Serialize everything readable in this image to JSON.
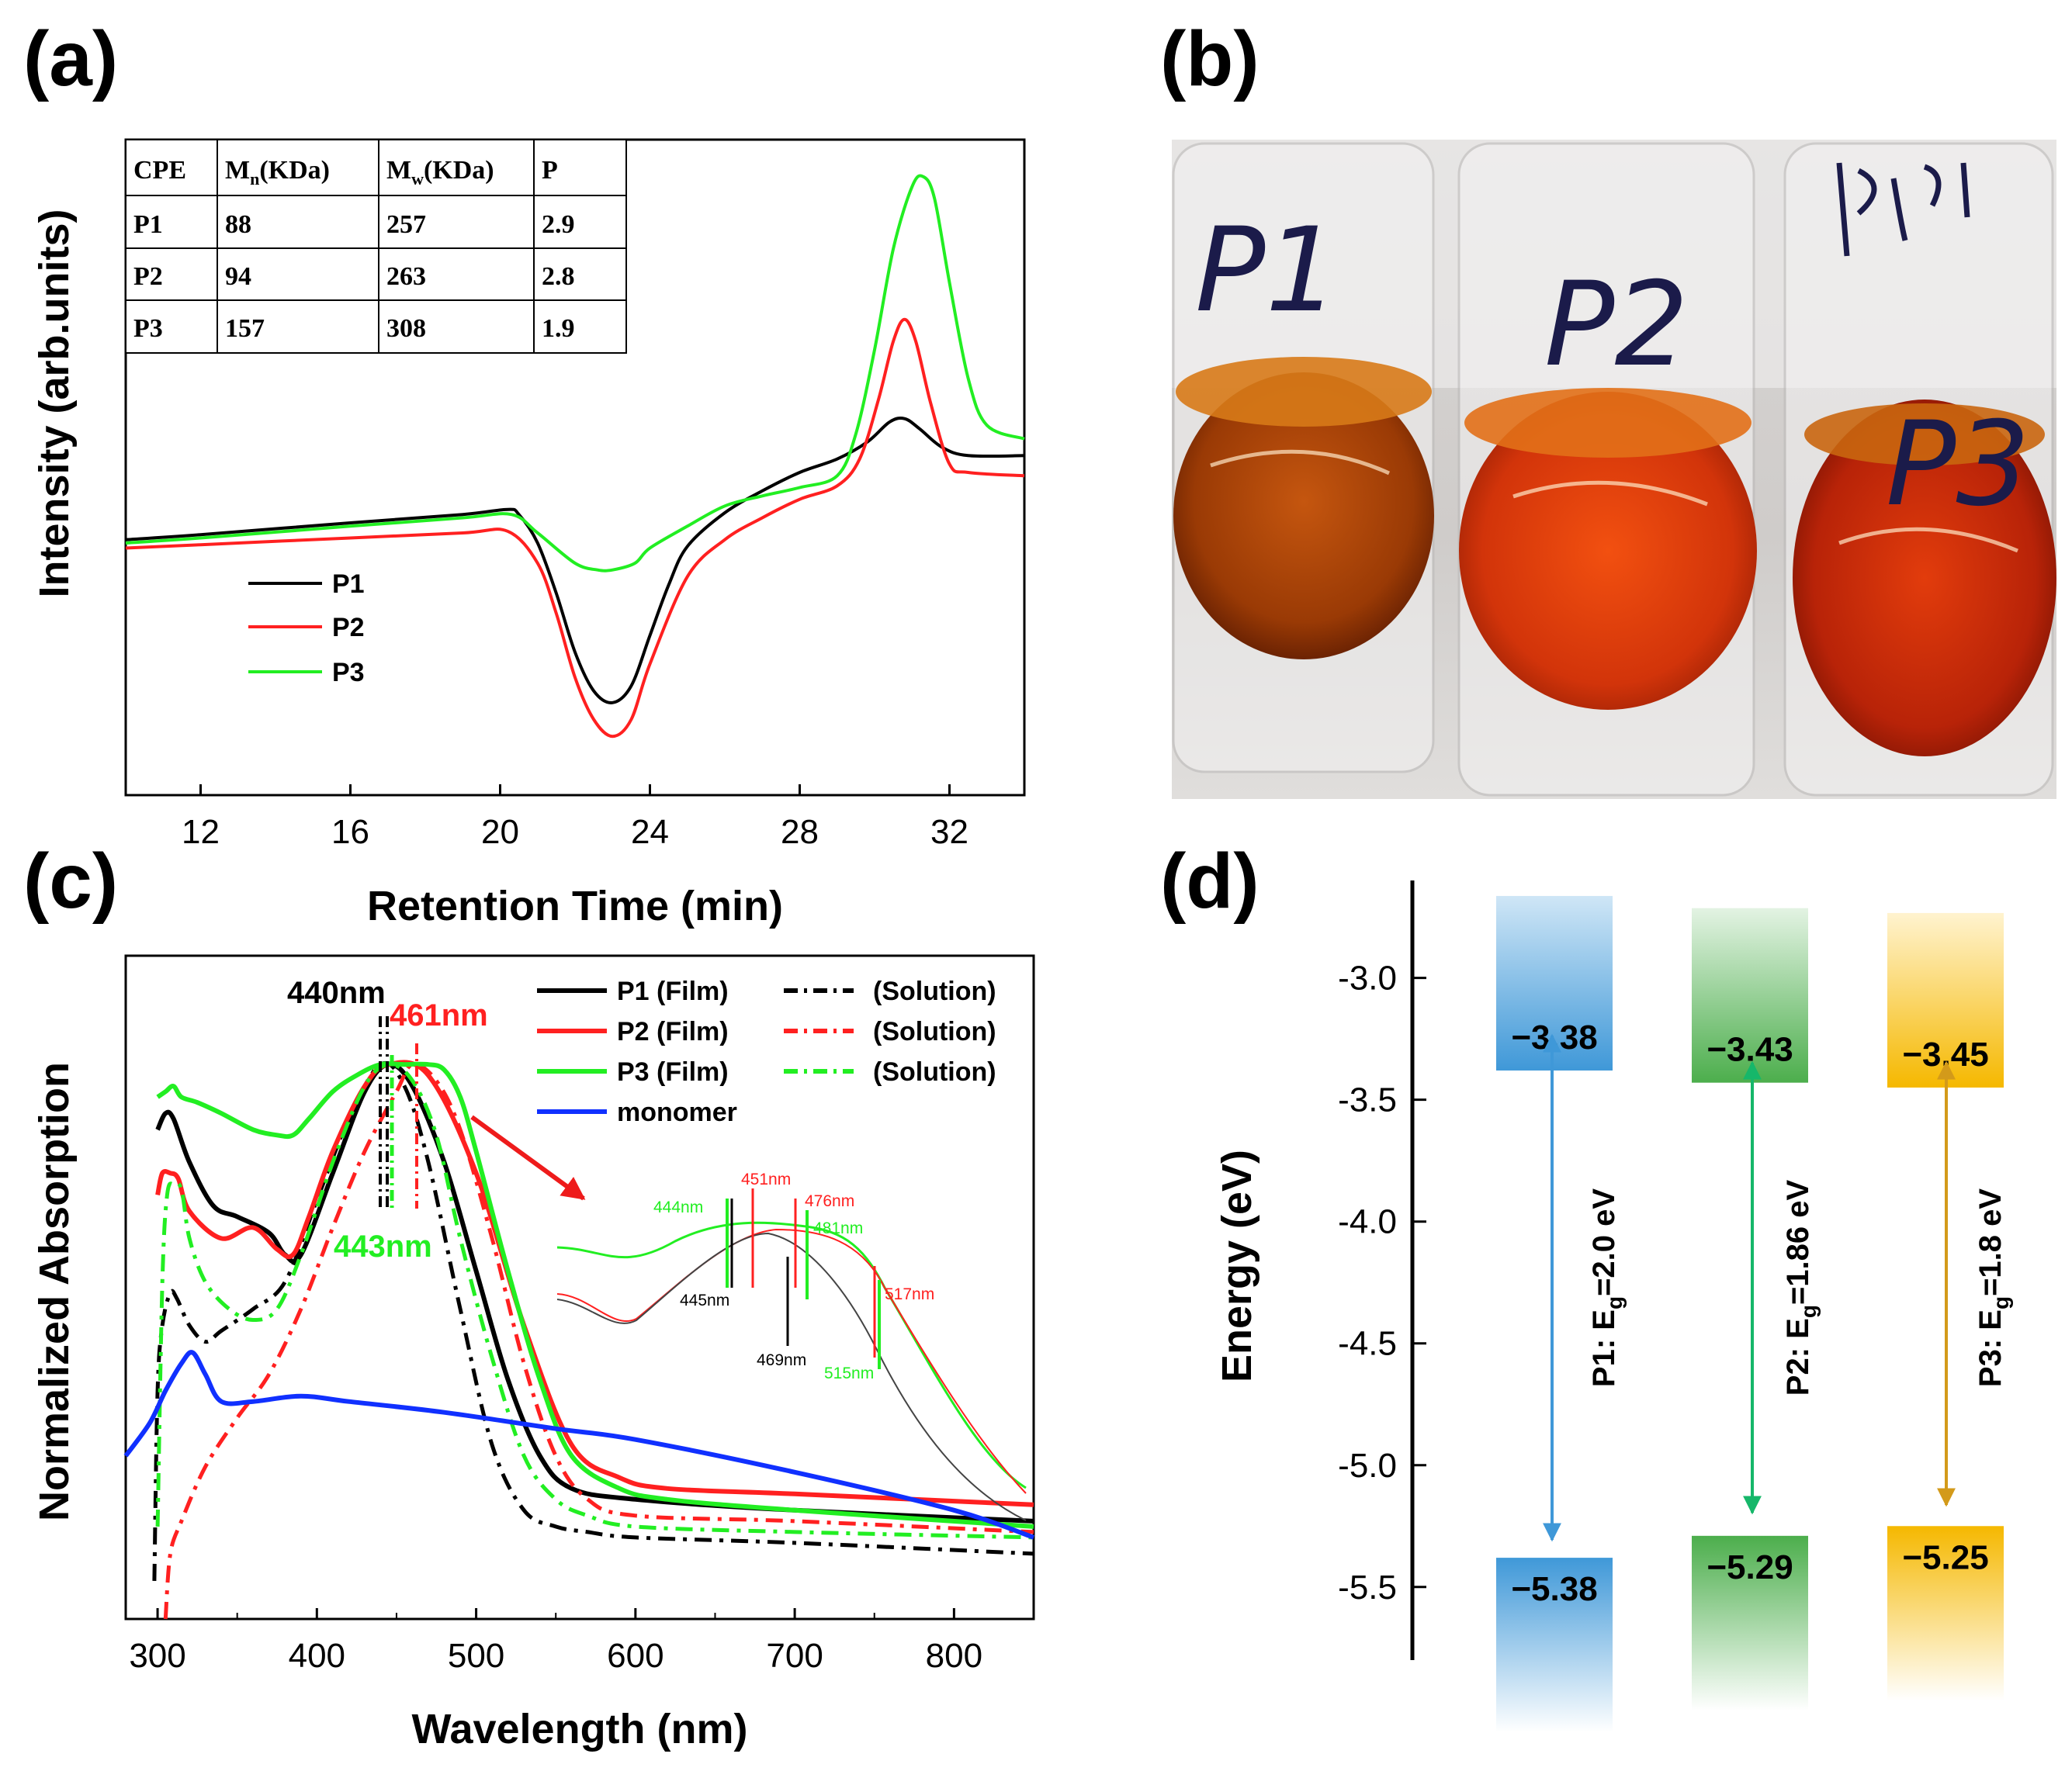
{
  "panels": {
    "a": "(a)",
    "b": "(b)",
    "c": "(c)",
    "d": "(d)"
  },
  "colors": {
    "P1": "#000000",
    "P2": "#ff2020",
    "P3": "#22ee22",
    "monomer": "#1030ff",
    "level_P1": "#3f98d8",
    "level_P2": "#4cae4c",
    "level_P3": "#f5b800"
  },
  "chart_data": [
    {
      "id": "a",
      "type": "line",
      "title": "",
      "xlabel": "Retention Time (min)",
      "ylabel": "Intensity (arb.units)",
      "xlim": [
        10,
        34
      ],
      "ylim": [
        -1.5,
        2.4
      ],
      "xticks": [
        12,
        16,
        20,
        24,
        28,
        32
      ],
      "series": [
        {
          "name": "P1",
          "x": [
            10,
            12,
            16,
            19,
            20.2,
            20.5,
            21,
            21.5,
            22,
            22.5,
            23,
            23.5,
            24,
            24.5,
            25,
            26,
            27,
            28,
            29,
            29.8,
            30.4,
            30.8,
            31.2,
            31.8,
            32.5,
            34
          ],
          "y": [
            0.02,
            0.05,
            0.12,
            0.17,
            0.2,
            0.17,
            0.0,
            -0.3,
            -0.65,
            -0.88,
            -0.95,
            -0.85,
            -0.55,
            -0.25,
            -0.02,
            0.18,
            0.31,
            0.42,
            0.5,
            0.6,
            0.72,
            0.74,
            0.68,
            0.57,
            0.52,
            0.52
          ]
        },
        {
          "name": "P2",
          "x": [
            10,
            12,
            16,
            19,
            20.2,
            21,
            21.5,
            22,
            22.5,
            23,
            23.5,
            24,
            25,
            26,
            27,
            28,
            29,
            29.6,
            30.1,
            30.5,
            30.8,
            31.1,
            31.5,
            32,
            32.5,
            34
          ],
          "y": [
            -0.03,
            -0.01,
            0.03,
            0.06,
            0.07,
            -0.12,
            -0.42,
            -0.8,
            -1.05,
            -1.15,
            -1.05,
            -0.72,
            -0.2,
            0.02,
            0.15,
            0.26,
            0.34,
            0.5,
            0.85,
            1.2,
            1.33,
            1.2,
            0.83,
            0.47,
            0.42,
            0.4
          ]
        },
        {
          "name": "P3",
          "x": [
            10,
            12,
            16,
            19,
            20.3,
            21,
            22,
            22.6,
            23,
            23.6,
            24,
            25,
            26,
            27,
            28,
            29,
            29.5,
            30,
            30.5,
            31,
            31.3,
            31.6,
            32,
            32.5,
            33,
            34
          ],
          "y": [
            0.0,
            0.03,
            0.1,
            0.15,
            0.17,
            0.06,
            -0.12,
            -0.16,
            -0.16,
            -0.12,
            -0.03,
            0.1,
            0.22,
            0.28,
            0.33,
            0.4,
            0.65,
            1.15,
            1.75,
            2.12,
            2.18,
            2.05,
            1.55,
            0.98,
            0.7,
            0.62
          ]
        }
      ],
      "legend": [
        "P1",
        "P2",
        "P3"
      ],
      "table": {
        "headers": [
          "CPE",
          "M_n(KDa)",
          "M_w(KDa)",
          "P"
        ],
        "rows": [
          [
            "P1",
            "88",
            "257",
            "2.9"
          ],
          [
            "P2",
            "94",
            "263",
            "2.8"
          ],
          [
            "P3",
            "157",
            "308",
            "1.9"
          ]
        ]
      }
    },
    {
      "id": "c",
      "type": "line",
      "title": "",
      "xlabel": "Wavelength (nm)",
      "ylabel": "Normalized Absorption",
      "xlim": [
        280,
        850
      ],
      "ylim": [
        -0.12,
        1.1
      ],
      "xticks": [
        300,
        400,
        500,
        600,
        700,
        800
      ],
      "series": [
        {
          "name": "P1 (Film)",
          "style": "solid",
          "color": "#000000",
          "x": [
            300,
            305,
            310,
            320,
            335,
            350,
            370,
            380,
            390,
            410,
            430,
            445,
            460,
            480,
            500,
            520,
            540,
            560,
            600,
            700,
            850
          ],
          "y": [
            0.78,
            0.81,
            0.8,
            0.72,
            0.64,
            0.62,
            0.59,
            0.55,
            0.55,
            0.7,
            0.85,
            0.9,
            0.86,
            0.72,
            0.52,
            0.32,
            0.18,
            0.12,
            0.1,
            0.08,
            0.06
          ]
        },
        {
          "name": "P1 (Solution)",
          "style": "dashdot",
          "color": "#000000",
          "x": [
            298,
            300,
            303,
            308,
            312,
            320,
            330,
            340,
            360,
            380,
            400,
            420,
            440,
            455,
            470,
            490,
            510,
            530,
            550,
            570,
            600,
            700,
            850
          ],
          "y": [
            -0.05,
            0.3,
            0.42,
            0.48,
            0.47,
            0.42,
            0.39,
            0.41,
            0.45,
            0.5,
            0.65,
            0.8,
            0.9,
            0.86,
            0.72,
            0.45,
            0.2,
            0.08,
            0.05,
            0.04,
            0.03,
            0.02,
            0.0
          ]
        },
        {
          "name": "P2 (Film)",
          "style": "solid",
          "color": "#ff2020",
          "x": [
            300,
            303,
            308,
            313,
            320,
            340,
            360,
            375,
            385,
            395,
            410,
            430,
            445,
            470,
            500,
            530,
            560,
            590,
            620,
            700,
            850
          ],
          "y": [
            0.66,
            0.7,
            0.7,
            0.69,
            0.63,
            0.58,
            0.6,
            0.56,
            0.55,
            0.62,
            0.74,
            0.86,
            0.9,
            0.88,
            0.7,
            0.42,
            0.2,
            0.14,
            0.12,
            0.11,
            0.09
          ]
        },
        {
          "name": "P2 (Solution)",
          "style": "dashdot",
          "color": "#ff2020",
          "x": [
            305,
            308,
            315,
            330,
            350,
            370,
            390,
            410,
            430,
            450,
            460,
            475,
            490,
            510,
            530,
            550,
            570,
            600,
            700,
            850
          ],
          "y": [
            -0.12,
            0.0,
            0.06,
            0.16,
            0.25,
            0.33,
            0.45,
            0.6,
            0.74,
            0.85,
            0.9,
            0.87,
            0.78,
            0.58,
            0.35,
            0.18,
            0.1,
            0.07,
            0.06,
            0.04
          ]
        },
        {
          "name": "P3 (Film)",
          "style": "solid",
          "color": "#22ee22",
          "x": [
            300,
            305,
            310,
            315,
            325,
            340,
            360,
            375,
            385,
            395,
            410,
            425,
            440,
            455,
            470,
            480,
            490,
            500,
            520,
            540,
            560,
            590,
            620,
            700,
            850
          ],
          "y": [
            0.84,
            0.85,
            0.86,
            0.84,
            0.83,
            0.81,
            0.78,
            0.77,
            0.77,
            0.8,
            0.85,
            0.88,
            0.9,
            0.9,
            0.9,
            0.89,
            0.84,
            0.74,
            0.52,
            0.32,
            0.18,
            0.12,
            0.1,
            0.08,
            0.05
          ]
        },
        {
          "name": "P3 (Solution)",
          "style": "dashdot",
          "color": "#22ee22",
          "x": [
            300,
            303,
            306,
            310,
            315,
            320,
            330,
            345,
            360,
            375,
            390,
            410,
            430,
            445,
            460,
            475,
            490,
            510,
            530,
            550,
            570,
            600,
            700,
            850
          ],
          "y": [
            0.05,
            0.5,
            0.66,
            0.68,
            0.67,
            0.58,
            0.5,
            0.45,
            0.43,
            0.45,
            0.55,
            0.72,
            0.86,
            0.9,
            0.87,
            0.77,
            0.58,
            0.36,
            0.18,
            0.1,
            0.07,
            0.05,
            0.04,
            0.03
          ]
        },
        {
          "name": "monomer",
          "style": "solid",
          "color": "#1030ff",
          "x": [
            280,
            295,
            305,
            315,
            322,
            330,
            340,
            360,
            390,
            420,
            480,
            550,
            600,
            700,
            800,
            850
          ],
          "y": [
            0.18,
            0.24,
            0.3,
            0.35,
            0.37,
            0.33,
            0.28,
            0.28,
            0.29,
            0.28,
            0.26,
            0.23,
            0.21,
            0.15,
            0.08,
            0.03
          ]
        }
      ],
      "legend": [
        {
          "film": "P1 (Film)",
          "solution": "(Solution)"
        },
        {
          "film": "P2 (Film)",
          "solution": "(Solution)"
        },
        {
          "film": "P3 (Film)",
          "solution": "(Solution)"
        },
        {
          "film": "monomer",
          "solution": ""
        }
      ],
      "annotations": {
        "peak_black": "440nm",
        "peak_red": "461nm",
        "peak_green": "443nm"
      },
      "inset": {
        "labels": [
          "444nm",
          "451nm",
          "476nm",
          "481nm",
          "445nm",
          "469nm",
          "517nm",
          "515nm"
        ]
      }
    },
    {
      "id": "d",
      "type": "bar",
      "title": "",
      "ylabel": "Energy (eV)",
      "ylim": [
        -5.8,
        -2.6
      ],
      "yticks": [
        -3.0,
        -3.5,
        -4.0,
        -4.5,
        -5.0,
        -5.5
      ],
      "ytick_labels": [
        "-3.0",
        "-3.5",
        "-4.0",
        "-4.5",
        "-5.0",
        "-5.5"
      ],
      "categories": [
        "P1",
        "P2",
        "P3"
      ],
      "LUMO": [
        -3.38,
        -3.43,
        -3.45
      ],
      "HOMO": [
        -5.38,
        -5.29,
        -5.25
      ],
      "lumo_labels": [
        "−3.38",
        "−3.43",
        "−3.45"
      ],
      "homo_labels": [
        "−5.38",
        "−5.29",
        "−5.25"
      ],
      "bandgap_labels": [
        "P1: E_g=2.0 eV",
        "P2: E_g=1.86 eV",
        "P3: E_g=1.8 eV"
      ]
    }
  ],
  "photo": {
    "labels": [
      "P1",
      "P2",
      "P3"
    ]
  }
}
